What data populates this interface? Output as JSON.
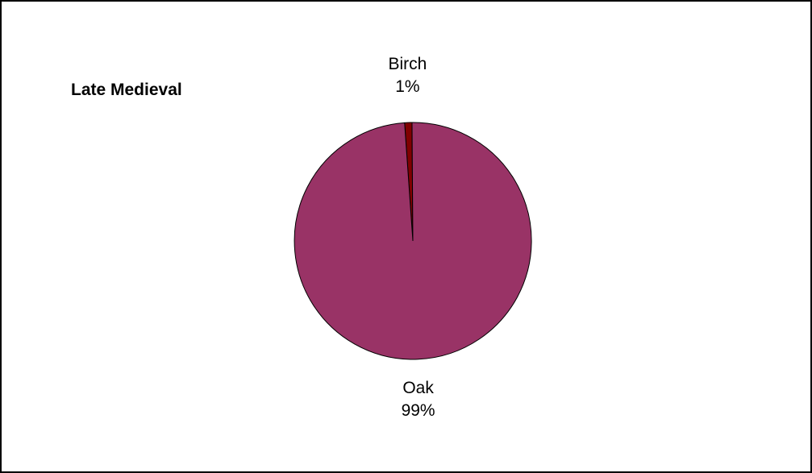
{
  "chart_data": {
    "type": "pie",
    "title": "Late Medieval",
    "slices": [
      {
        "label": "Birch",
        "value": 1,
        "value_label": "1%",
        "color": "#800000"
      },
      {
        "label": "Oak",
        "value": 99,
        "value_label": "99%",
        "color": "#993366"
      }
    ],
    "start_angle_deg": -4,
    "direction": "clockwise",
    "legend": "none"
  }
}
